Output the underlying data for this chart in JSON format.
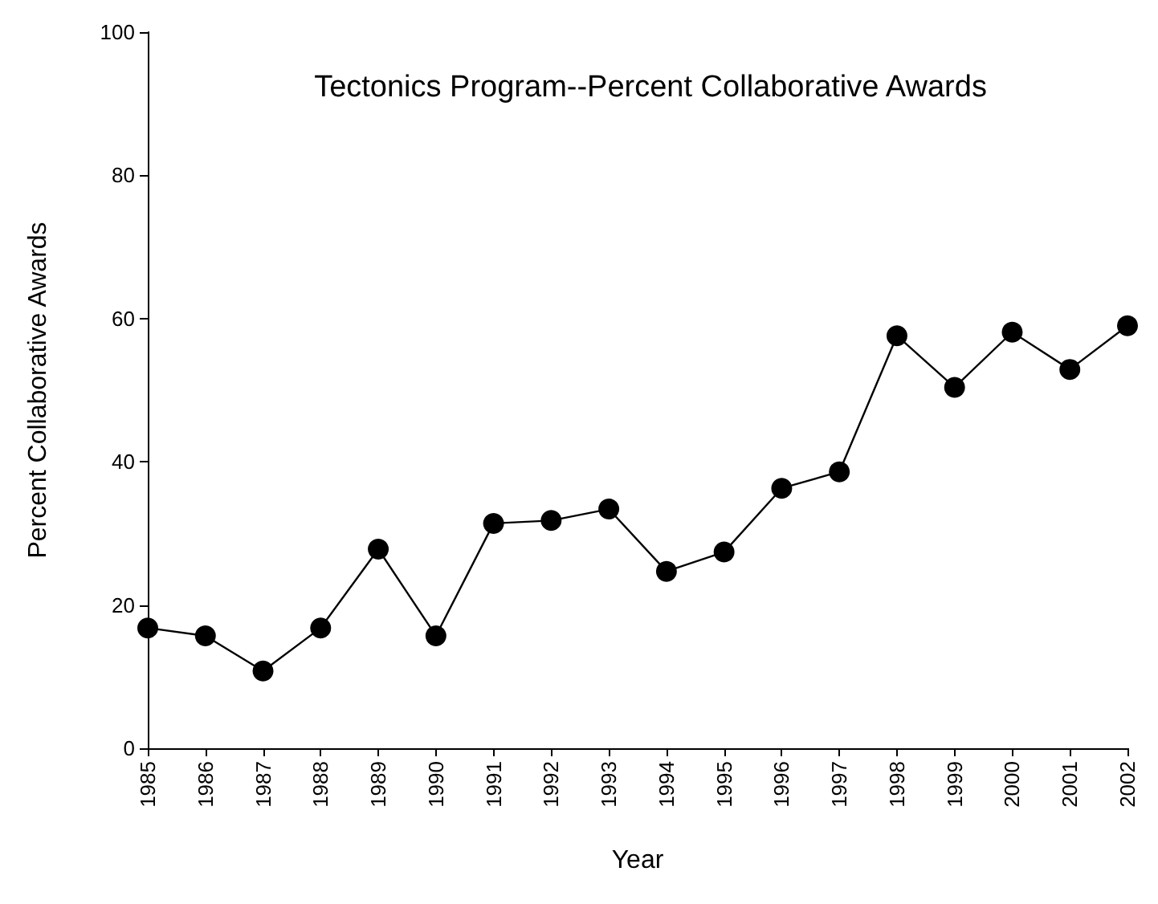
{
  "chart_data": {
    "type": "line",
    "title": "Tectonics Program--Percent Collaborative Awards",
    "xlabel": "Year",
    "ylabel": "Percent Collaborative Awards",
    "categories": [
      "1985",
      "1986",
      "1987",
      "1988",
      "1989",
      "1990",
      "1991",
      "1992",
      "1993",
      "1994",
      "1995",
      "1996",
      "1997",
      "1998",
      "1999",
      "2000",
      "2001",
      "2002"
    ],
    "series": [
      {
        "color": "#000000",
        "values": [
          16.8,
          15.7,
          10.8,
          16.8,
          27.8,
          15.7,
          31.4,
          31.8,
          33.4,
          24.7,
          27.4,
          36.3,
          38.6,
          57.6,
          50.4,
          58.1,
          52.9,
          59.0
        ]
      }
    ],
    "ylim": [
      0,
      100
    ],
    "yticks": [
      0,
      20,
      40,
      60,
      80,
      100
    ],
    "grid": false,
    "marker": "circle",
    "line_style": "solid"
  }
}
